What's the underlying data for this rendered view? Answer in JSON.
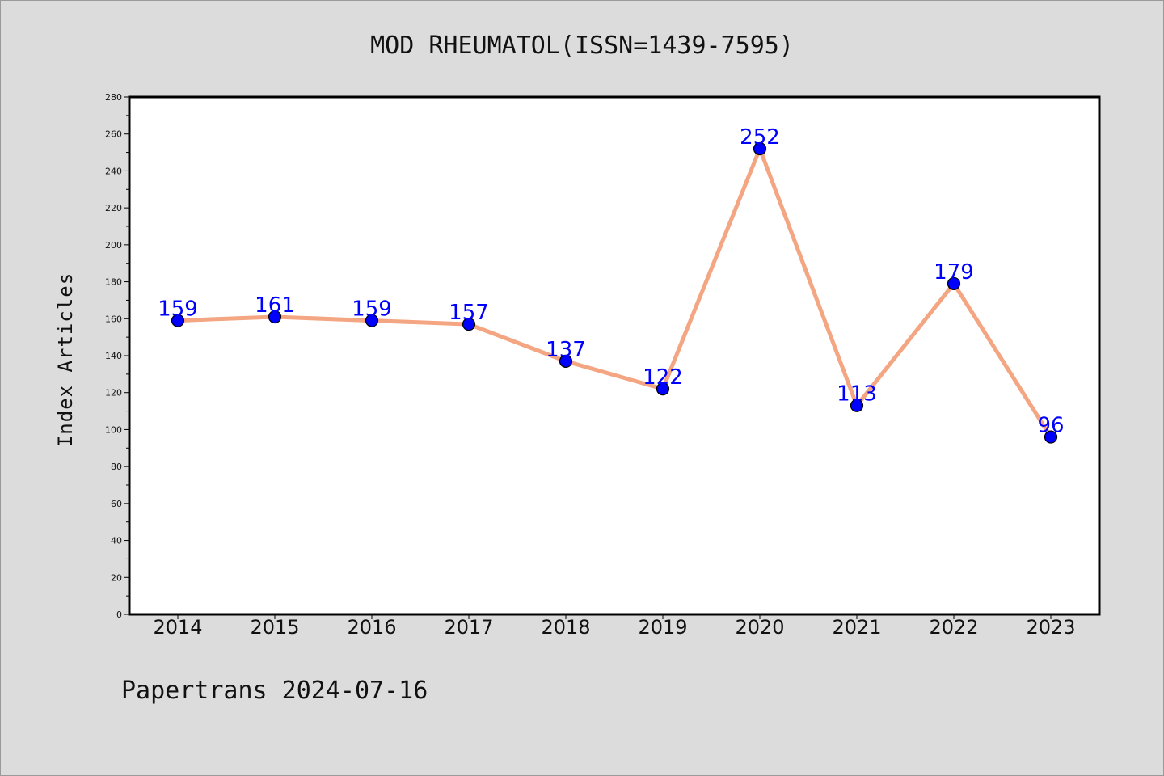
{
  "chart_data": {
    "type": "line",
    "title": "MOD RHEUMATOL(ISSN=1439-7595)",
    "ylabel": "Index Articles",
    "xlabel": "",
    "categories": [
      "2014",
      "2015",
      "2016",
      "2017",
      "2018",
      "2019",
      "2020",
      "2021",
      "2022",
      "2023"
    ],
    "series": [
      {
        "values": [
          159,
          161,
          159,
          157,
          137,
          122,
          252,
          113,
          179,
          96
        ]
      }
    ],
    "ylim": [
      0,
      280
    ],
    "yticks": [
      0,
      20,
      40,
      60,
      80,
      100,
      120,
      140,
      160,
      180,
      200,
      220,
      240,
      260,
      280
    ],
    "grid": false,
    "legend": "none",
    "colors": {
      "line": "#f4a582",
      "marker": "#0000ff",
      "label": "#0000ff",
      "plot_bg": "#ffffff",
      "figure_bg": "#dcdcdc"
    }
  },
  "footer": "Papertrans 2024-07-16"
}
